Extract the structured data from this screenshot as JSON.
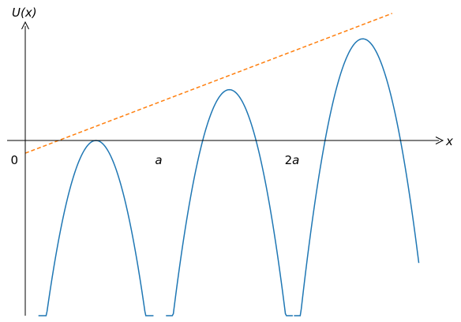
{
  "chart_data": {
    "type": "line",
    "xlabel": "x",
    "ylabel": "U(x)",
    "ticks": [
      {
        "x": 0,
        "label": "0"
      },
      {
        "x": 1,
        "label": "a"
      },
      {
        "x": 2,
        "label": "2a"
      }
    ],
    "xlim": [
      -0.14,
      3.12
    ],
    "ylim": [
      -1.86,
      0.68
    ],
    "series": [
      {
        "kind": "periodic-potential",
        "color": "#1f77b4",
        "peaks": [
          [
            0.53,
            0.0
          ],
          [
            1.53,
            0.4
          ],
          [
            2.53,
            0.8
          ]
        ],
        "curvature": 10.0,
        "x_range": [
          0.0,
          2.95
        ]
      },
      {
        "kind": "linear-envelope",
        "color": "#ff7f0e",
        "dashed": true,
        "slope": 0.4,
        "intercept": -0.1,
        "x_range": [
          0.0,
          2.75
        ]
      }
    ],
    "grid": false
  }
}
